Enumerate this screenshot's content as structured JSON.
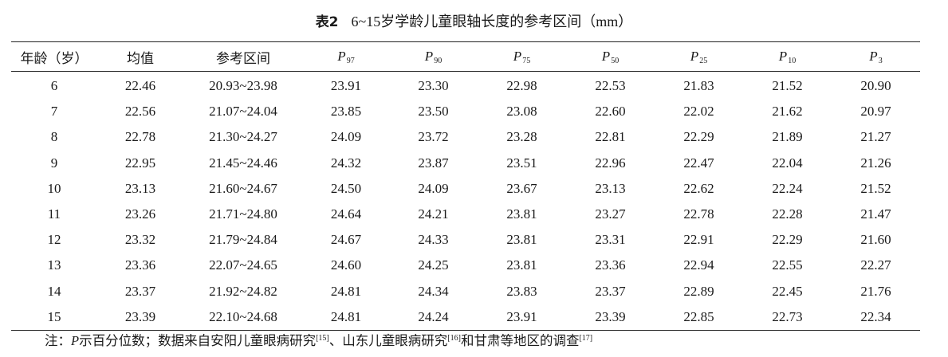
{
  "caption": {
    "label": "表2",
    "title": "6~15岁学龄儿童眼轴长度的参考区间",
    "unit": "（mm）"
  },
  "table": {
    "headers": [
      {
        "text": "年龄（岁）"
      },
      {
        "text": "均值"
      },
      {
        "text": "参考区间"
      },
      {
        "symbol": "P",
        "sub": "97"
      },
      {
        "symbol": "P",
        "sub": "90"
      },
      {
        "symbol": "P",
        "sub": "75"
      },
      {
        "symbol": "P",
        "sub": "50"
      },
      {
        "symbol": "P",
        "sub": "25"
      },
      {
        "symbol": "P",
        "sub": "10"
      },
      {
        "symbol": "P",
        "sub": "3"
      }
    ],
    "rows": [
      [
        "6",
        "22.46",
        "20.93~23.98",
        "23.91",
        "23.30",
        "22.98",
        "22.53",
        "21.83",
        "21.52",
        "20.90"
      ],
      [
        "7",
        "22.56",
        "21.07~24.04",
        "23.85",
        "23.50",
        "23.08",
        "22.60",
        "22.02",
        "21.62",
        "20.97"
      ],
      [
        "8",
        "22.78",
        "21.30~24.27",
        "24.09",
        "23.72",
        "23.28",
        "22.81",
        "22.29",
        "21.89",
        "21.27"
      ],
      [
        "9",
        "22.95",
        "21.45~24.46",
        "24.32",
        "23.87",
        "23.51",
        "22.96",
        "22.47",
        "22.04",
        "21.26"
      ],
      [
        "10",
        "23.13",
        "21.60~24.67",
        "24.50",
        "24.09",
        "23.67",
        "23.13",
        "22.62",
        "22.24",
        "21.52"
      ],
      [
        "11",
        "23.26",
        "21.71~24.80",
        "24.64",
        "24.21",
        "23.81",
        "23.27",
        "22.78",
        "22.28",
        "21.47"
      ],
      [
        "12",
        "23.32",
        "21.79~24.84",
        "24.67",
        "24.33",
        "23.81",
        "23.31",
        "22.91",
        "22.29",
        "21.60"
      ],
      [
        "13",
        "23.36",
        "22.07~24.65",
        "24.60",
        "24.25",
        "23.81",
        "23.36",
        "22.94",
        "22.55",
        "22.27"
      ],
      [
        "14",
        "23.37",
        "21.92~24.82",
        "24.81",
        "24.34",
        "23.83",
        "23.37",
        "22.89",
        "22.45",
        "21.76"
      ],
      [
        "15",
        "23.39",
        "22.10~24.68",
        "24.81",
        "24.24",
        "23.91",
        "23.39",
        "22.85",
        "22.73",
        "22.34"
      ]
    ]
  },
  "note": {
    "prefix": "注：",
    "symbol": "P",
    "text1": "示百分位数；数据来自安阳儿童眼病研究",
    "ref1": "[15]",
    "text2": "、山东儿童眼病研究",
    "ref2": "[16]",
    "text3": "和甘肃等地区的调查",
    "ref3": "[17]"
  }
}
